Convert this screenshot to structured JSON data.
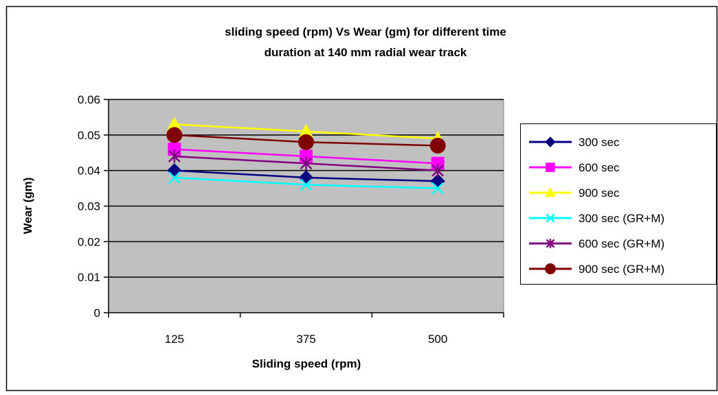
{
  "chart_data": {
    "type": "line",
    "title_line1": "sliding speed (rpm) Vs Wear (gm) for different time",
    "title_line2": "duration at 140 mm radial wear track",
    "xlabel": "Sliding speed (rpm)",
    "ylabel": "Wear (gm)",
    "categories": [
      "125",
      "375",
      "500"
    ],
    "ylim": [
      0,
      0.06
    ],
    "yticks": [
      "0",
      "0.01",
      "0.02",
      "0.03",
      "0.04",
      "0.05",
      "0.06"
    ],
    "grid": true,
    "legend_position": "right",
    "plot_background": "#c0c0c0",
    "series": [
      {
        "name": "300 sec",
        "values": [
          0.04,
          0.038,
          0.037
        ],
        "color": "#000080",
        "marker": "diamond"
      },
      {
        "name": "600 sec",
        "values": [
          0.046,
          0.044,
          0.042
        ],
        "color": "#ff00ff",
        "marker": "square"
      },
      {
        "name": "900 sec",
        "values": [
          0.053,
          0.051,
          0.049
        ],
        "color": "#ffff00",
        "marker": "triangle"
      },
      {
        "name": "300 sec (GR+M)",
        "values": [
          0.038,
          0.036,
          0.035
        ],
        "color": "#00ffff",
        "marker": "x"
      },
      {
        "name": "600 sec (GR+M)",
        "values": [
          0.044,
          0.042,
          0.04
        ],
        "color": "#800080",
        "marker": "star"
      },
      {
        "name": "900 sec (GR+M)",
        "values": [
          0.05,
          0.048,
          0.047
        ],
        "color": "#800000",
        "marker": "circle"
      }
    ]
  }
}
